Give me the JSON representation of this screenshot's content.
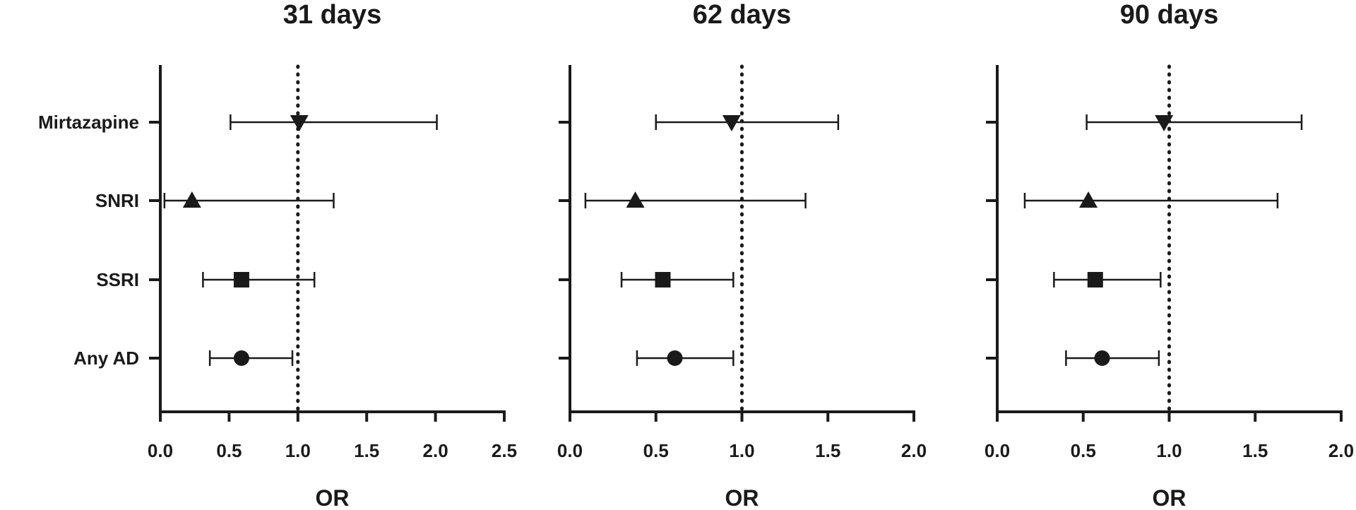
{
  "chart_data": [
    {
      "type": "forest",
      "title": "31 days",
      "xlabel": "OR",
      "xlim": [
        0,
        2.5
      ],
      "xticks": [
        "0.0",
        "0.5",
        "1.0",
        "1.5",
        "2.0",
        "2.5"
      ],
      "reference_line": 1.0,
      "categories": [
        "Mirtazapine",
        "SNRI",
        "SSRI",
        "Any AD"
      ],
      "points": [
        {
          "label": "Mirtazapine",
          "or": 1.01,
          "lower": 0.51,
          "upper": 2.01,
          "marker": "triangle-down"
        },
        {
          "label": "SNRI",
          "or": 0.23,
          "lower": 0.03,
          "upper": 1.26,
          "marker": "triangle-up"
        },
        {
          "label": "SSRI",
          "or": 0.59,
          "lower": 0.31,
          "upper": 1.12,
          "marker": "square"
        },
        {
          "label": "Any AD",
          "or": 0.59,
          "lower": 0.36,
          "upper": 0.96,
          "marker": "circle"
        }
      ]
    },
    {
      "type": "forest",
      "title": "62 days",
      "xlabel": "OR",
      "xlim": [
        0,
        2.0
      ],
      "xticks": [
        "0.0",
        "0.5",
        "1.0",
        "1.5",
        "2.0"
      ],
      "reference_line": 1.0,
      "categories": [
        "Mirtazapine",
        "SNRI",
        "SSRI",
        "Any AD"
      ],
      "points": [
        {
          "label": "Mirtazapine",
          "or": 0.94,
          "lower": 0.5,
          "upper": 1.56,
          "marker": "triangle-down"
        },
        {
          "label": "SNRI",
          "or": 0.38,
          "lower": 0.09,
          "upper": 1.37,
          "marker": "triangle-up"
        },
        {
          "label": "SSRI",
          "or": 0.54,
          "lower": 0.3,
          "upper": 0.95,
          "marker": "square"
        },
        {
          "label": "Any AD",
          "or": 0.61,
          "lower": 0.39,
          "upper": 0.95,
          "marker": "circle"
        }
      ]
    },
    {
      "type": "forest",
      "title": "90 days",
      "xlabel": "OR",
      "xlim": [
        0,
        2.0
      ],
      "xticks": [
        "0.0",
        "0.5",
        "1.0",
        "1.5",
        "2.0"
      ],
      "reference_line": 1.0,
      "categories": [
        "Mirtazapine",
        "SNRI",
        "SSRI",
        "Any AD"
      ],
      "points": [
        {
          "label": "Mirtazapine",
          "or": 0.97,
          "lower": 0.52,
          "upper": 1.77,
          "marker": "triangle-down"
        },
        {
          "label": "SNRI",
          "or": 0.53,
          "lower": 0.16,
          "upper": 1.63,
          "marker": "triangle-up"
        },
        {
          "label": "SSRI",
          "or": 0.57,
          "lower": 0.33,
          "upper": 0.95,
          "marker": "square"
        },
        {
          "label": "Any AD",
          "or": 0.61,
          "lower": 0.4,
          "upper": 0.94,
          "marker": "circle"
        }
      ]
    }
  ],
  "colors": {
    "ink": "#1a1a1a",
    "background": "#ffffff"
  }
}
